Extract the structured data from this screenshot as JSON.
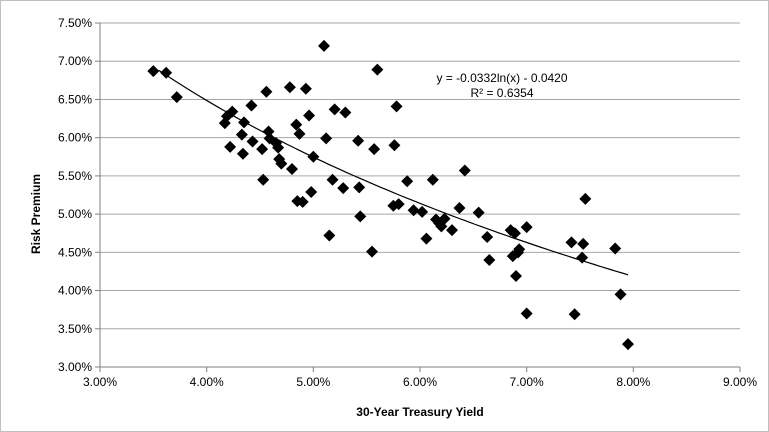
{
  "chart_data": {
    "type": "scatter",
    "title": "",
    "xlabel": "30-Year Treasury Yield",
    "ylabel": "Risk Premium",
    "xlim": [
      0.03,
      0.09
    ],
    "ylim": [
      0.03,
      0.075
    ],
    "x_ticks": [
      "3.00%",
      "4.00%",
      "5.00%",
      "6.00%",
      "7.00%",
      "8.00%",
      "9.00%"
    ],
    "y_ticks": [
      "3.00%",
      "3.50%",
      "4.00%",
      "4.50%",
      "5.00%",
      "5.50%",
      "6.00%",
      "6.50%",
      "7.00%",
      "7.50%"
    ],
    "gridlines": "horizontal",
    "legend": "none",
    "marker": "diamond",
    "marker_color": "#000000",
    "trendline": {
      "type": "logarithmic",
      "equation": "y = -0.0332ln(x) - 0.0420",
      "r_squared": "R² = 0.6354",
      "a": -0.0332,
      "b": -0.042,
      "x_range": [
        0.0355,
        0.0795
      ]
    },
    "points": [
      [
        0.035,
        0.0687
      ],
      [
        0.0362,
        0.0685
      ],
      [
        0.0372,
        0.0653
      ],
      [
        0.0417,
        0.0619
      ],
      [
        0.0419,
        0.0628
      ],
      [
        0.0422,
        0.0588
      ],
      [
        0.0424,
        0.0634
      ],
      [
        0.0433,
        0.0604
      ],
      [
        0.0434,
        0.0579
      ],
      [
        0.0435,
        0.062
      ],
      [
        0.0442,
        0.0642
      ],
      [
        0.0443,
        0.0595
      ],
      [
        0.0452,
        0.0585
      ],
      [
        0.0453,
        0.0545
      ],
      [
        0.0456,
        0.066
      ],
      [
        0.0458,
        0.0608
      ],
      [
        0.0459,
        0.0599
      ],
      [
        0.0465,
        0.0593
      ],
      [
        0.0467,
        0.0587
      ],
      [
        0.0468,
        0.0572
      ],
      [
        0.047,
        0.0566
      ],
      [
        0.0478,
        0.0666
      ],
      [
        0.048,
        0.0559
      ],
      [
        0.0484,
        0.0617
      ],
      [
        0.0485,
        0.0517
      ],
      [
        0.0487,
        0.0605
      ],
      [
        0.049,
        0.0516
      ],
      [
        0.0493,
        0.0664
      ],
      [
        0.0496,
        0.0629
      ],
      [
        0.0498,
        0.0529
      ],
      [
        0.05,
        0.0575
      ],
      [
        0.051,
        0.072
      ],
      [
        0.0512,
        0.0599
      ],
      [
        0.0515,
        0.0472
      ],
      [
        0.0518,
        0.0545
      ],
      [
        0.052,
        0.0637
      ],
      [
        0.0528,
        0.0534
      ],
      [
        0.053,
        0.0633
      ],
      [
        0.0542,
        0.0596
      ],
      [
        0.0543,
        0.0535
      ],
      [
        0.0544,
        0.0497
      ],
      [
        0.0555,
        0.0451
      ],
      [
        0.0557,
        0.0585
      ],
      [
        0.056,
        0.0689
      ],
      [
        0.0575,
        0.0511
      ],
      [
        0.0576,
        0.059
      ],
      [
        0.0578,
        0.0641
      ],
      [
        0.058,
        0.0513
      ],
      [
        0.0588,
        0.0543
      ],
      [
        0.0594,
        0.0505
      ],
      [
        0.0602,
        0.0503
      ],
      [
        0.0606,
        0.0468
      ],
      [
        0.0612,
        0.0545
      ],
      [
        0.0615,
        0.0493
      ],
      [
        0.0618,
        0.0488
      ],
      [
        0.062,
        0.0484
      ],
      [
        0.0623,
        0.0494
      ],
      [
        0.063,
        0.0479
      ],
      [
        0.0637,
        0.0508
      ],
      [
        0.0642,
        0.0557
      ],
      [
        0.0655,
        0.0502
      ],
      [
        0.0663,
        0.047
      ],
      [
        0.0665,
        0.044
      ],
      [
        0.0685,
        0.0479
      ],
      [
        0.0687,
        0.0445
      ],
      [
        0.0689,
        0.0475
      ],
      [
        0.069,
        0.0419
      ],
      [
        0.0692,
        0.045
      ],
      [
        0.0693,
        0.0454
      ],
      [
        0.07,
        0.0483
      ],
      [
        0.07,
        0.037
      ],
      [
        0.0742,
        0.0463
      ],
      [
        0.0745,
        0.0369
      ],
      [
        0.0752,
        0.0443
      ],
      [
        0.0753,
        0.0461
      ],
      [
        0.0755,
        0.052
      ],
      [
        0.0783,
        0.0455
      ],
      [
        0.0788,
        0.0395
      ],
      [
        0.0795,
        0.033
      ]
    ]
  }
}
